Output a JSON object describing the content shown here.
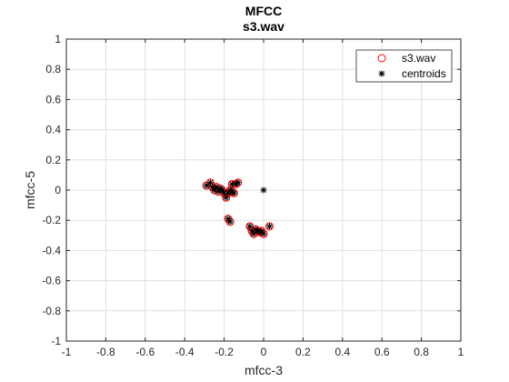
{
  "chart_data": {
    "type": "scatter",
    "title": "MFCC",
    "subtitle": "s3.wav",
    "xlabel": "mfcc-3",
    "ylabel": "mfcc-5",
    "xlim": [
      -1,
      1
    ],
    "ylim": [
      -1,
      1
    ],
    "xticks": [
      -1,
      -0.8,
      -0.6,
      -0.4,
      -0.2,
      0,
      0.2,
      0.4,
      0.6,
      0.8,
      1
    ],
    "yticks": [
      -1,
      -0.8,
      -0.6,
      -0.4,
      -0.2,
      0,
      0.2,
      0.4,
      0.6,
      0.8,
      1
    ],
    "xtick_labels": [
      "-1",
      "-0.8",
      "-0.6",
      "-0.4",
      "-0.2",
      "0",
      "0.2",
      "0.4",
      "0.6",
      "0.8",
      "1"
    ],
    "ytick_labels": [
      "-1",
      "-0.8",
      "-0.6",
      "-0.4",
      "-0.2",
      "0",
      "0.2",
      "0.4",
      "0.6",
      "0.8",
      "1"
    ],
    "grid": true,
    "legend_position": "top-right",
    "series": [
      {
        "name": "s3.wav",
        "marker": "circle",
        "color": "#ff0000",
        "points": [
          [
            -0.29,
            0.03
          ],
          [
            -0.27,
            0.05
          ],
          [
            -0.26,
            0.02
          ],
          [
            -0.25,
            0.0
          ],
          [
            -0.24,
            0.02
          ],
          [
            -0.23,
            -0.01
          ],
          [
            -0.22,
            0.01
          ],
          [
            -0.21,
            0.0
          ],
          [
            -0.2,
            -0.02
          ],
          [
            -0.19,
            -0.05
          ],
          [
            -0.18,
            -0.02
          ],
          [
            -0.17,
            0.0
          ],
          [
            -0.16,
            -0.01
          ],
          [
            -0.15,
            -0.02
          ],
          [
            -0.16,
            0.04
          ],
          [
            -0.14,
            0.04
          ],
          [
            -0.13,
            0.05
          ],
          [
            -0.18,
            -0.19
          ],
          [
            -0.17,
            -0.21
          ],
          [
            -0.07,
            -0.24
          ],
          [
            -0.06,
            -0.27
          ],
          [
            -0.05,
            -0.29
          ],
          [
            -0.04,
            -0.26
          ],
          [
            -0.03,
            -0.27
          ],
          [
            -0.02,
            -0.28
          ],
          [
            -0.01,
            -0.27
          ],
          [
            0.0,
            -0.29
          ],
          [
            0.03,
            -0.24
          ]
        ]
      },
      {
        "name": "centroids",
        "marker": "asterisk",
        "color": "#000000",
        "points": [
          [
            -0.29,
            0.03
          ],
          [
            -0.27,
            0.05
          ],
          [
            -0.26,
            0.02
          ],
          [
            -0.25,
            0.0
          ],
          [
            -0.24,
            0.02
          ],
          [
            -0.23,
            -0.01
          ],
          [
            -0.22,
            0.01
          ],
          [
            -0.21,
            0.0
          ],
          [
            -0.2,
            -0.02
          ],
          [
            -0.19,
            -0.05
          ],
          [
            -0.18,
            -0.02
          ],
          [
            -0.17,
            0.0
          ],
          [
            -0.16,
            -0.01
          ],
          [
            -0.15,
            -0.02
          ],
          [
            -0.16,
            0.04
          ],
          [
            -0.14,
            0.04
          ],
          [
            -0.13,
            0.05
          ],
          [
            -0.18,
            -0.19
          ],
          [
            -0.17,
            -0.21
          ],
          [
            -0.07,
            -0.24
          ],
          [
            -0.06,
            -0.27
          ],
          [
            -0.05,
            -0.29
          ],
          [
            -0.04,
            -0.26
          ],
          [
            -0.03,
            -0.27
          ],
          [
            -0.02,
            -0.28
          ],
          [
            -0.01,
            -0.27
          ],
          [
            0.0,
            -0.29
          ],
          [
            0.03,
            -0.24
          ],
          [
            0.0,
            0.0
          ]
        ]
      }
    ]
  }
}
